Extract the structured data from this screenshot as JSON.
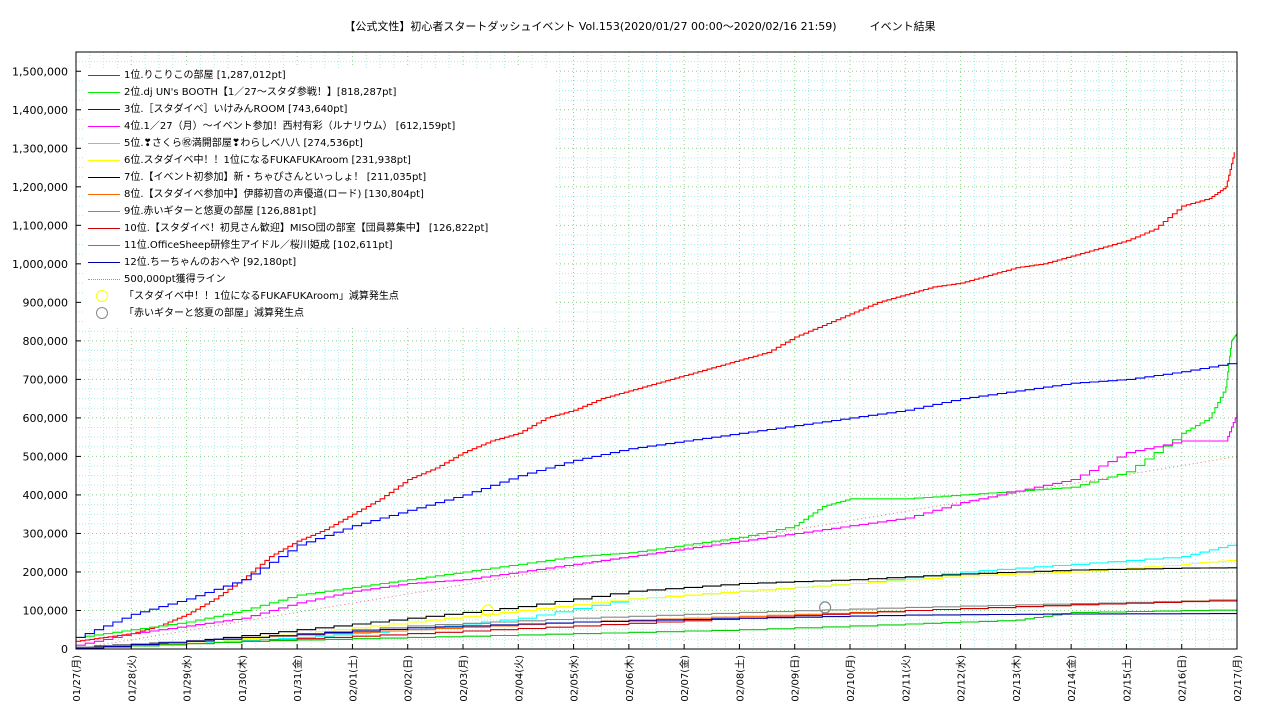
{
  "chart_data": {
    "type": "line",
    "title": "【公式文性】初心者スタートダッシュイベント Vol.153(2020/01/27 00:00〜2020/02/16 21:59)　　　イベント結果",
    "xlabel": "",
    "ylabel": "",
    "ylim": [
      0,
      1550000
    ],
    "yticks": [
      "0",
      "100,000",
      "200,000",
      "300,000",
      "400,000",
      "500,000",
      "600,000",
      "700,000",
      "800,000",
      "900,000",
      "1,000,000",
      "1,100,000",
      "1,200,000",
      "1,300,000",
      "1,400,000",
      "1,500,000"
    ],
    "xticks": [
      "01/27(月)",
      "01/28(火)",
      "01/29(水)",
      "01/30(木)",
      "01/31(金)",
      "02/01(土)",
      "02/02(日)",
      "02/03(月)",
      "02/04(火)",
      "02/05(水)",
      "02/06(木)",
      "02/07(金)",
      "02/08(土)",
      "02/09(日)",
      "02/10(月)",
      "02/11(火)",
      "02/12(水)",
      "02/13(木)",
      "02/14(金)",
      "02/15(土)",
      "02/16(日)",
      "02/17(月)"
    ],
    "grid": true,
    "legend_position": "top-left",
    "series": [
      {
        "name": "1位.りこりこの部屋 [1,287,012pt]",
        "color": "#ff0000",
        "x": [
          0,
          0.5,
          1,
          1.5,
          2,
          2.5,
          3,
          3.5,
          4,
          4.5,
          5,
          5.5,
          6,
          6.5,
          7,
          7.5,
          8,
          8.5,
          9,
          9.5,
          10,
          10.5,
          11,
          11.5,
          12,
          12.5,
          13,
          13.5,
          14,
          14.5,
          15,
          15.5,
          16,
          16.5,
          17,
          17.5,
          18,
          18.5,
          19,
          19.5,
          20,
          20.5,
          20.8,
          20.95
        ],
        "y": [
          20000,
          30000,
          40000,
          60000,
          90000,
          130000,
          180000,
          240000,
          280000,
          310000,
          350000,
          390000,
          440000,
          470000,
          510000,
          540000,
          560000,
          600000,
          620000,
          650000,
          670000,
          690000,
          710000,
          730000,
          750000,
          770000,
          810000,
          840000,
          870000,
          900000,
          920000,
          940000,
          950000,
          970000,
          990000,
          1000000,
          1020000,
          1040000,
          1060000,
          1090000,
          1150000,
          1170000,
          1200000,
          1290000
        ]
      },
      {
        "name": "2位.dj UN's BOOTH【1／27〜スタダ参戦！】[818,287pt]",
        "color": "#00ee00",
        "x": [
          0,
          1,
          2,
          3,
          4,
          5,
          6,
          7,
          8,
          9,
          10,
          11,
          12,
          13,
          13.5,
          14,
          15,
          16,
          17,
          18,
          19,
          20,
          20.5,
          20.8,
          20.9,
          21
        ],
        "y": [
          30000,
          50000,
          70000,
          100000,
          140000,
          160000,
          180000,
          200000,
          220000,
          240000,
          250000,
          270000,
          290000,
          320000,
          370000,
          390000,
          390000,
          400000,
          410000,
          420000,
          460000,
          560000,
          600000,
          680000,
          800000,
          820000
        ]
      },
      {
        "name": "3位.［スタダイベ］いけみんROOM [743,640pt]",
        "color": "#0000ff",
        "x": [
          0,
          1,
          2,
          3,
          4,
          5,
          6,
          7,
          8,
          9,
          10,
          11,
          12,
          13,
          14,
          15,
          16,
          17,
          18,
          19,
          20,
          21
        ],
        "y": [
          30000,
          90000,
          130000,
          180000,
          270000,
          320000,
          360000,
          400000,
          450000,
          490000,
          520000,
          540000,
          560000,
          580000,
          600000,
          620000,
          650000,
          670000,
          690000,
          700000,
          720000,
          745000
        ]
      },
      {
        "name": "4位.1／27（月）〜イベント参加！西村有彩（ルナリウム） [612,159pt]",
        "color": "#ff00ff",
        "x": [
          0,
          1,
          2,
          3,
          4,
          5,
          6,
          7,
          8,
          9,
          10,
          11,
          12,
          13,
          14,
          15,
          16,
          17,
          18,
          19,
          20,
          20.8,
          21
        ],
        "y": [
          10000,
          40000,
          60000,
          80000,
          120000,
          150000,
          170000,
          180000,
          200000,
          220000,
          240000,
          260000,
          280000,
          300000,
          320000,
          340000,
          380000,
          410000,
          440000,
          510000,
          540000,
          540000,
          612000
        ]
      },
      {
        "name": "5位.❣さくら㊗満開部屋❣わらしべ八八 [274,536pt]",
        "color": "#00ffff",
        "x": [
          0,
          2,
          4,
          6,
          8,
          10,
          12,
          14,
          16,
          18,
          20,
          21
        ],
        "y": [
          5000,
          15000,
          30000,
          50000,
          80000,
          130000,
          150000,
          170000,
          200000,
          220000,
          240000,
          275000
        ]
      },
      {
        "name": "6位.スタダイベ中！！1位になるFUKAFUKAroom [231,938pt]",
        "color": "#ffff00",
        "x": [
          0,
          2,
          4,
          6,
          8,
          10,
          12,
          14,
          16,
          18,
          20,
          21
        ],
        "y": [
          5000,
          15000,
          40000,
          70000,
          100000,
          130000,
          150000,
          170000,
          190000,
          200000,
          220000,
          232000
        ]
      },
      {
        "name": "7位.【イベント初参加】新・ちゃぴさんといっしょ！ [211,035pt]",
        "color": "#000000",
        "x": [
          0,
          2,
          4,
          6,
          8,
          10,
          12,
          14,
          16,
          18,
          20,
          21
        ],
        "y": [
          5000,
          20000,
          50000,
          80000,
          110000,
          150000,
          170000,
          180000,
          195000,
          205000,
          210000,
          211000
        ]
      },
      {
        "name": "8位.【スタダイベ参加中】伊藤初音の声優道(ロード) [130,804pt]",
        "color": "#ff6600",
        "x": [
          0,
          3,
          6,
          9,
          12,
          15,
          18,
          21
        ],
        "y": [
          5000,
          30000,
          50000,
          70000,
          85000,
          100000,
          115000,
          130000
        ]
      },
      {
        "name": "9位.赤いギターと悠夏の部屋 [126,881pt]",
        "color": "#888888",
        "x": [
          0,
          3,
          6,
          9,
          12,
          15,
          18,
          21
        ],
        "y": [
          5000,
          30000,
          60000,
          80000,
          95000,
          108000,
          118000,
          127000
        ]
      },
      {
        "name": "10位.【スタダイベ！初見さん歓迎】MISO団の部室【団員募集中】 [126,822pt]",
        "color": "#cc0000",
        "x": [
          0,
          3,
          6,
          9,
          12,
          15,
          18,
          21
        ],
        "y": [
          2000,
          20000,
          40000,
          60000,
          80000,
          100000,
          115000,
          127000
        ]
      },
      {
        "name": "11位.OfficeSheep研修生アイドル／桜川姫成 [102,611pt]",
        "color": "#00cc00",
        "x": [
          0,
          3,
          6,
          9,
          12,
          15,
          17,
          18,
          21
        ],
        "y": [
          2000,
          20000,
          30000,
          40000,
          50000,
          65000,
          75000,
          95000,
          102000
        ]
      },
      {
        "name": "12位.ちーちゃんのおへや [92,180pt]",
        "color": "#0000aa",
        "x": [
          0,
          3,
          6,
          9,
          12,
          15,
          18,
          21
        ],
        "y": [
          2000,
          30000,
          55000,
          70000,
          80000,
          88000,
          91000,
          92000
        ]
      }
    ],
    "reference_line": {
      "name": "500,000pt獲得ライン",
      "color": "#dd7777",
      "x": [
        0,
        21
      ],
      "y": [
        0,
        500000
      ]
    },
    "markers": [
      {
        "name": "「スタダイベ中！！1位になるFUKAFUKAroom」減算発生点",
        "color": "#ffff00",
        "x": 7.45,
        "y": 100000
      },
      {
        "name": "「赤いギターと悠夏の部屋」減算発生点",
        "color": "#888888",
        "x": 13.55,
        "y": 108000
      }
    ]
  }
}
